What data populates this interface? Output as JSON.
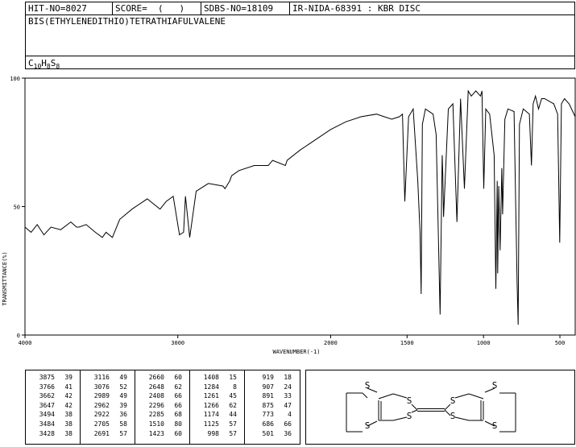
{
  "header": {
    "hit_no": "HIT-NO=8027",
    "score": "SCORE=  (   )",
    "sdbs_no": "SDBS-NO=18109",
    "ir_code": "IR-NIDA-68391 : KBR DISC",
    "compound_name": "BIS(ETHYLENEDITHIO)TETRATHIAFULVALENE",
    "formula": {
      "c": "C",
      "c_n": "10",
      "h": "H",
      "h_n": "8",
      "s": "S",
      "s_n": "8"
    }
  },
  "chart_data": {
    "type": "line",
    "title": "",
    "xlabel": "WAVENUMBER(-1)",
    "ylabel": "TRANSMITTANCE(%)",
    "xlim": [
      4000,
      400
    ],
    "ylim": [
      0,
      100
    ],
    "x_ticks": [
      4000,
      3000,
      2000,
      1500,
      1000,
      500
    ],
    "y_ticks": [
      0,
      50,
      100
    ],
    "grid": false,
    "series": [
      {
        "x": [
          4000,
          3960,
          3920,
          3876,
          3830,
          3766,
          3700,
          3662,
          3647,
          3600,
          3540,
          3494,
          3470,
          3428,
          3380,
          3300,
          3200,
          3116,
          3076,
          3030,
          2989,
          2962,
          2950,
          2922,
          2880,
          2800,
          2705,
          2691,
          2660,
          2648,
          2600,
          2500,
          2408,
          2380,
          2296,
          2285,
          2200,
          2100,
          2000,
          1900,
          1800,
          1700,
          1650,
          1600,
          1550,
          1530,
          1515,
          1490,
          1460,
          1430,
          1415,
          1408,
          1400,
          1380,
          1330,
          1310,
          1284,
          1270,
          1266,
          1261,
          1230,
          1200,
          1174,
          1150,
          1125,
          1100,
          1080,
          1050,
          1020,
          1010,
          998,
          985,
          960,
          930,
          919,
          910,
          907,
          900,
          891,
          880,
          875,
          860,
          840,
          800,
          780,
          773,
          765,
          740,
          700,
          686,
          675,
          660,
          640,
          620,
          600,
          570,
          540,
          515,
          501,
          490,
          470,
          440,
          400
        ],
        "y": [
          42,
          40,
          43,
          39,
          42,
          41,
          44,
          42,
          42,
          43,
          40,
          38,
          40,
          38,
          45,
          49,
          53,
          49,
          52,
          54,
          39,
          40,
          54,
          38,
          56,
          59,
          58,
          57,
          60,
          62,
          64,
          66,
          66,
          68,
          66,
          68,
          72,
          76,
          80,
          83,
          85,
          86,
          85,
          84,
          85,
          86,
          52,
          85,
          88,
          60,
          40,
          16,
          82,
          88,
          86,
          78,
          8,
          70,
          62,
          46,
          88,
          90,
          44,
          92,
          57,
          95,
          93,
          95,
          93,
          95,
          57,
          88,
          86,
          70,
          18,
          60,
          24,
          58,
          33,
          65,
          47,
          84,
          88,
          87,
          20,
          4,
          82,
          88,
          86,
          66,
          90,
          93,
          88,
          92,
          92,
          91,
          90,
          86,
          36,
          90,
          92,
          90,
          85
        ]
      }
    ]
  },
  "peaks": [
    [
      [
        "3875",
        "39"
      ],
      [
        "3766",
        "41"
      ],
      [
        "3662",
        "42"
      ],
      [
        "3647",
        "42"
      ],
      [
        "3494",
        "38"
      ],
      [
        "3484",
        "38"
      ],
      [
        "3428",
        "38"
      ]
    ],
    [
      [
        "3116",
        "49"
      ],
      [
        "3076",
        "52"
      ],
      [
        "2989",
        "49"
      ],
      [
        "2962",
        "39"
      ],
      [
        "2922",
        "36"
      ],
      [
        "2705",
        "58"
      ],
      [
        "2691",
        "57"
      ]
    ],
    [
      [
        "2660",
        "60"
      ],
      [
        "2648",
        "62"
      ],
      [
        "2408",
        "66"
      ],
      [
        "2296",
        "66"
      ],
      [
        "2285",
        "68"
      ],
      [
        "1510",
        "80"
      ],
      [
        "1423",
        "60"
      ]
    ],
    [
      [
        "1408",
        "15"
      ],
      [
        "1284",
        "8"
      ],
      [
        "1261",
        "45"
      ],
      [
        "1266",
        "62"
      ],
      [
        "1174",
        "44"
      ],
      [
        "1125",
        "57"
      ],
      [
        "998",
        "57"
      ]
    ],
    [
      [
        "919",
        "18"
      ],
      [
        "907",
        "24"
      ],
      [
        "891",
        "33"
      ],
      [
        "875",
        "47"
      ],
      [
        "773",
        "4"
      ],
      [
        "686",
        "66"
      ],
      [
        "501",
        "36"
      ]
    ]
  ],
  "structure": {
    "sulfur_label": "S",
    "sulfur_count": 8
  }
}
